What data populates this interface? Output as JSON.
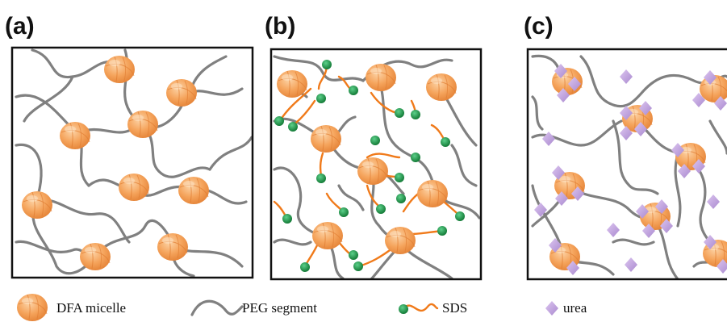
{
  "panels": [
    {
      "label": "(a)"
    },
    {
      "label": "(b)"
    },
    {
      "label": "(c)"
    }
  ],
  "legend": [
    {
      "label": "DFA micelle",
      "icon": "dfa-micelle-icon"
    },
    {
      "label": "PEG segment",
      "icon": "peg-segment-icon"
    },
    {
      "label": "SDS",
      "icon": "sds-icon"
    },
    {
      "label": "urea",
      "icon": "urea-icon"
    }
  ],
  "colors": {
    "micelle": "#f5a45c",
    "micelle_light": "#fbc894",
    "micelle_dark": "#e4853a",
    "peg": "#808080",
    "sds_head": "#1e9a48",
    "sds_tail": "#f07a1a",
    "urea": "#c7a8e0",
    "frame": "#111111"
  }
}
